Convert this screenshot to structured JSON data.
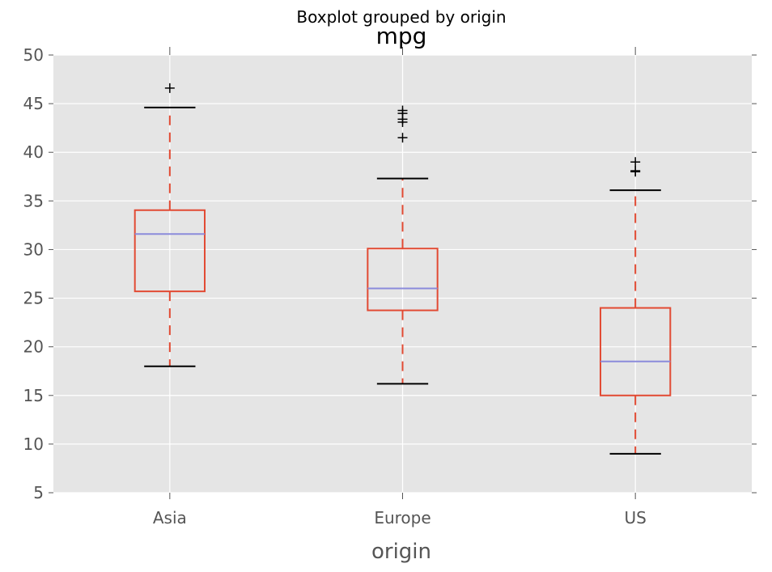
{
  "chart_data": {
    "type": "boxplot",
    "suptitle": "Boxplot grouped by origin",
    "title": "mpg",
    "xlabel": "origin",
    "ylabel": "",
    "ylim": [
      5,
      50
    ],
    "yticks": [
      5,
      10,
      15,
      20,
      25,
      30,
      35,
      40,
      45,
      50
    ],
    "grid": true,
    "categories": [
      "Asia",
      "Europe",
      "US"
    ],
    "boxes": [
      {
        "category": "Asia",
        "whisker_low": 18.0,
        "q1": 25.7,
        "median": 31.6,
        "q3": 34.05,
        "whisker_high": 44.6,
        "outliers": [
          46.6
        ]
      },
      {
        "category": "Europe",
        "whisker_low": 16.2,
        "q1": 23.75,
        "median": 26.0,
        "q3": 30.1,
        "whisker_high": 37.3,
        "outliers": [
          41.5,
          43.1,
          43.4,
          44.0,
          44.3
        ]
      },
      {
        "category": "US",
        "whisker_low": 9.0,
        "q1": 15.0,
        "median": 18.5,
        "q3": 24.0,
        "whisker_high": 36.1,
        "outliers": [
          38.0,
          38.1,
          39.0
        ]
      }
    ],
    "colors": {
      "plot_background": "#e5e5e5",
      "grid": "#ffffff",
      "box": "#e24a33",
      "median": "#8b8bdb",
      "whisker": "#e24a33",
      "cap": "#000000",
      "flier": "#000000",
      "tick_text": "#555555"
    }
  }
}
